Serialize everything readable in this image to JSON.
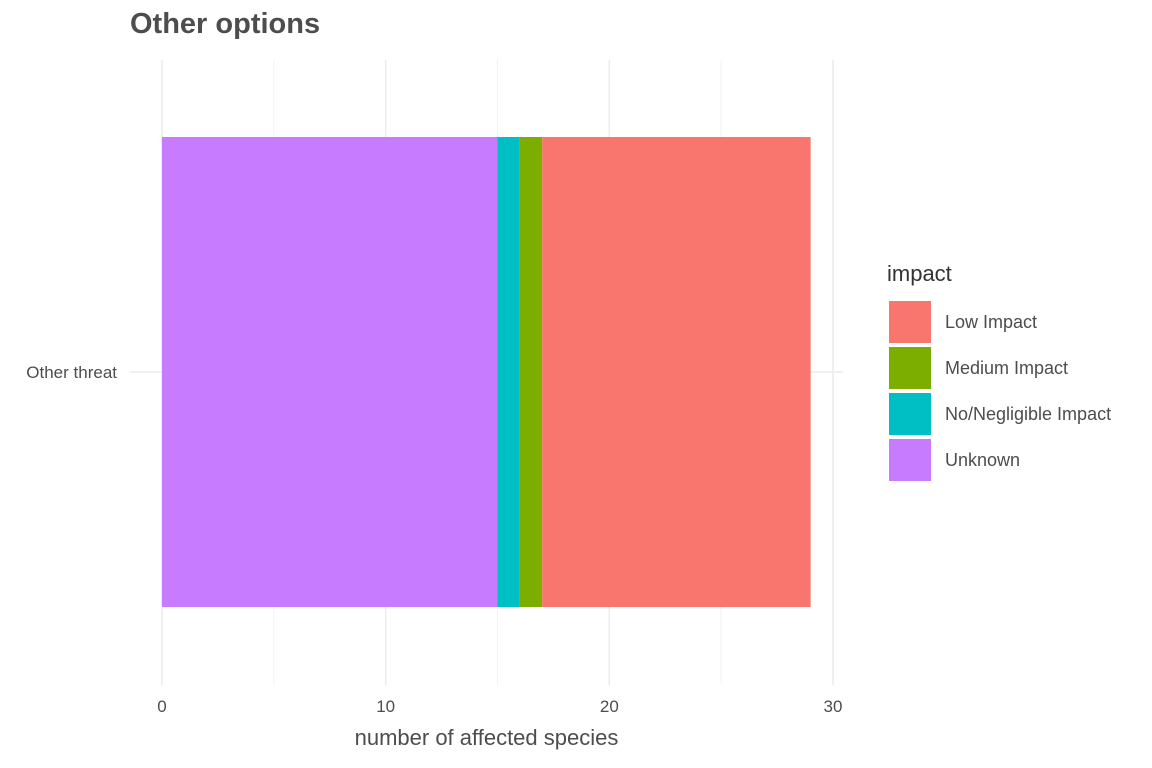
{
  "chart_data": {
    "type": "bar",
    "orientation": "horizontal",
    "stacked": true,
    "title": "Other options",
    "xlabel": "number of affected species",
    "ylabel": "",
    "categories": [
      "Other threat"
    ],
    "xlim": [
      0,
      30.5
    ],
    "x_ticks": [
      0,
      10,
      20,
      30
    ],
    "grid": true,
    "legend_title": "impact",
    "legend_position": "right",
    "stack_order": [
      "Unknown",
      "No/Negligible Impact",
      "Medium Impact",
      "Low Impact"
    ],
    "series": [
      {
        "name": "Low Impact",
        "values": [
          12
        ],
        "color": "#F8766D"
      },
      {
        "name": "Medium Impact",
        "values": [
          1
        ],
        "color": "#7CAE00"
      },
      {
        "name": "No/Negligible Impact",
        "values": [
          1
        ],
        "color": "#00BFC4"
      },
      {
        "name": "Unknown",
        "values": [
          15
        ],
        "color": "#C77CFF"
      }
    ]
  }
}
